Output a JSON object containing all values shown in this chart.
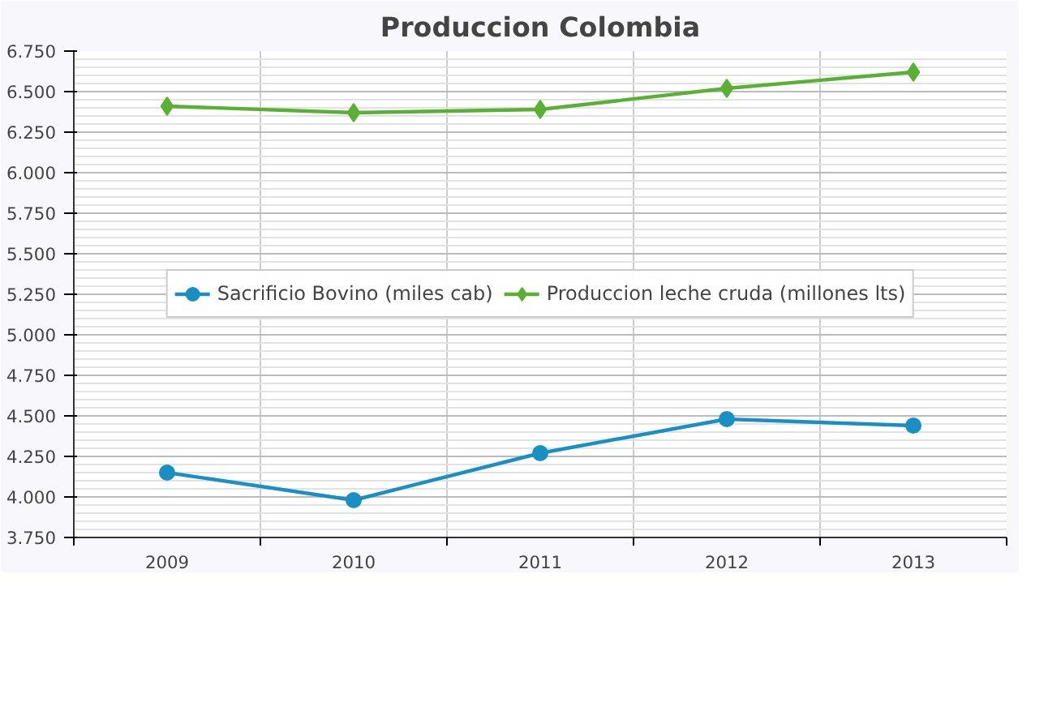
{
  "chart_data": {
    "type": "line",
    "title": "Produccion Colombia",
    "categories": [
      "2009",
      "2010",
      "2011",
      "2012",
      "2013"
    ],
    "series": [
      {
        "name": "Sacrificio Bovino (miles cab)",
        "color": "#1a8fc4",
        "marker": "circle",
        "values": [
          4150,
          3980,
          4270,
          4480,
          4440
        ]
      },
      {
        "name": "Produccion leche cruda (millones lts)",
        "color": "#5ab033",
        "marker": "diamond",
        "values": [
          6410,
          6370,
          6390,
          6520,
          6620
        ]
      }
    ],
    "ylim": [
      3750,
      6750
    ],
    "yticks": [
      {
        "value": 3750,
        "label": "3.750"
      },
      {
        "value": 4000,
        "label": "4.000"
      },
      {
        "value": 4250,
        "label": "4.250"
      },
      {
        "value": 4500,
        "label": "4.500"
      },
      {
        "value": 4750,
        "label": "4.750"
      },
      {
        "value": 5000,
        "label": "5.000"
      },
      {
        "value": 5250,
        "label": "5.250"
      },
      {
        "value": 5500,
        "label": "5.500"
      },
      {
        "value": 5750,
        "label": "5.750"
      },
      {
        "value": 6000,
        "label": "6.000"
      },
      {
        "value": 6250,
        "label": "6.250"
      },
      {
        "value": 6500,
        "label": "6.500"
      },
      {
        "value": 6750,
        "label": "6.750"
      }
    ],
    "grid": true,
    "legend": "center",
    "line_style": "solid"
  }
}
